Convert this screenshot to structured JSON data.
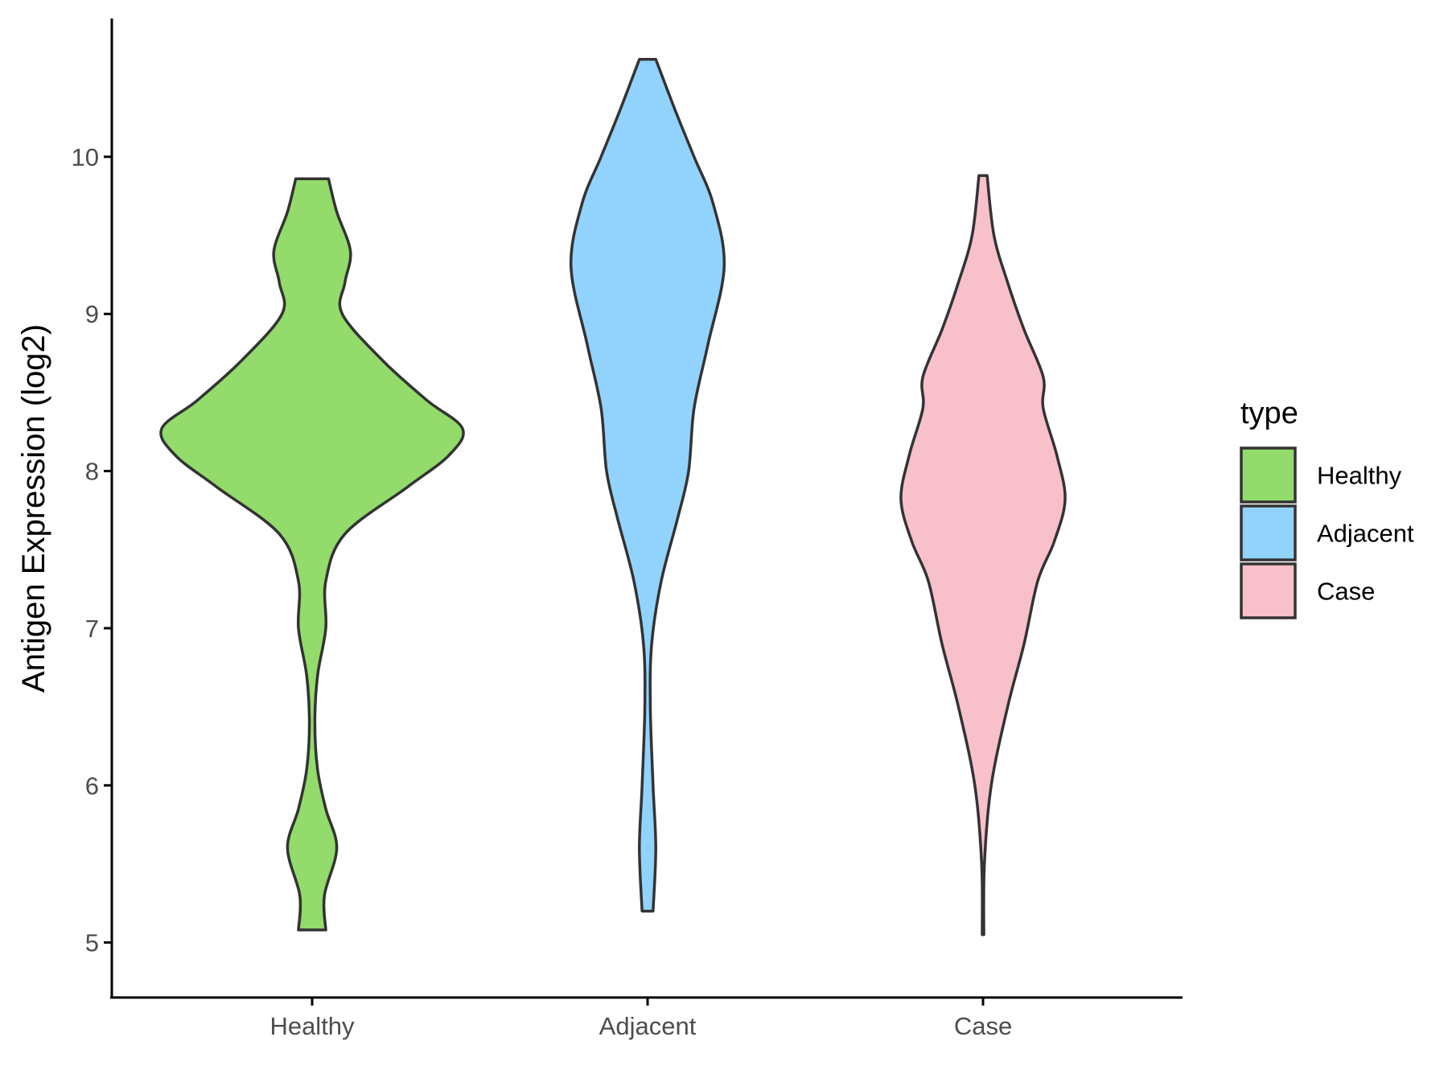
{
  "chart_data": {
    "type": "violin",
    "title": "",
    "xlabel": "",
    "ylabel": "Antigen Expression (log2)",
    "categories": [
      "Healthy",
      "Adjacent",
      "Case"
    ],
    "ylim": [
      4.65,
      10.88
    ],
    "yticks": [
      "5",
      "6",
      "7",
      "8",
      "9",
      "10"
    ],
    "yticks_values": [
      5,
      6,
      7,
      8,
      9,
      10
    ],
    "grid": false,
    "legend": {
      "title": "type",
      "placement": "right",
      "items": [
        "Healthy",
        "Adjacent",
        "Case"
      ]
    },
    "series": [
      {
        "name": "Healthy",
        "color": "#93db6a",
        "density_profile": [
          [
            5.08,
            0.05
          ],
          [
            5.3,
            0.045
          ],
          [
            5.6,
            0.09
          ],
          [
            5.85,
            0.05
          ],
          [
            6.1,
            0.02
          ],
          [
            6.4,
            0.01
          ],
          [
            6.7,
            0.02
          ],
          [
            7.0,
            0.05
          ],
          [
            7.3,
            0.05
          ],
          [
            7.6,
            0.12
          ],
          [
            7.9,
            0.35
          ],
          [
            8.1,
            0.5
          ],
          [
            8.27,
            0.55
          ],
          [
            8.45,
            0.42
          ],
          [
            8.7,
            0.26
          ],
          [
            9.0,
            0.11
          ],
          [
            9.2,
            0.12
          ],
          [
            9.4,
            0.14
          ],
          [
            9.65,
            0.09
          ],
          [
            9.86,
            0.06
          ]
        ]
      },
      {
        "name": "Adjacent",
        "color": "#92d3fe",
        "density_profile": [
          [
            5.2,
            0.02
          ],
          [
            5.6,
            0.03
          ],
          [
            6.0,
            0.02
          ],
          [
            6.5,
            0.01
          ],
          [
            6.9,
            0.015
          ],
          [
            7.3,
            0.05
          ],
          [
            7.7,
            0.11
          ],
          [
            8.0,
            0.15
          ],
          [
            8.4,
            0.17
          ],
          [
            8.8,
            0.22
          ],
          [
            9.3,
            0.28
          ],
          [
            9.7,
            0.24
          ],
          [
            10.0,
            0.17
          ],
          [
            10.3,
            0.1
          ],
          [
            10.62,
            0.03
          ]
        ]
      },
      {
        "name": "Case",
        "color": "#f8c0cb",
        "density_profile": [
          [
            5.05,
            0.003
          ],
          [
            5.5,
            0.005
          ],
          [
            6.0,
            0.03
          ],
          [
            6.5,
            0.09
          ],
          [
            6.9,
            0.15
          ],
          [
            7.3,
            0.2
          ],
          [
            7.55,
            0.26
          ],
          [
            7.82,
            0.3
          ],
          [
            8.1,
            0.27
          ],
          [
            8.4,
            0.22
          ],
          [
            8.6,
            0.22
          ],
          [
            8.9,
            0.15
          ],
          [
            9.2,
            0.09
          ],
          [
            9.5,
            0.04
          ],
          [
            9.88,
            0.015
          ]
        ]
      }
    ]
  }
}
